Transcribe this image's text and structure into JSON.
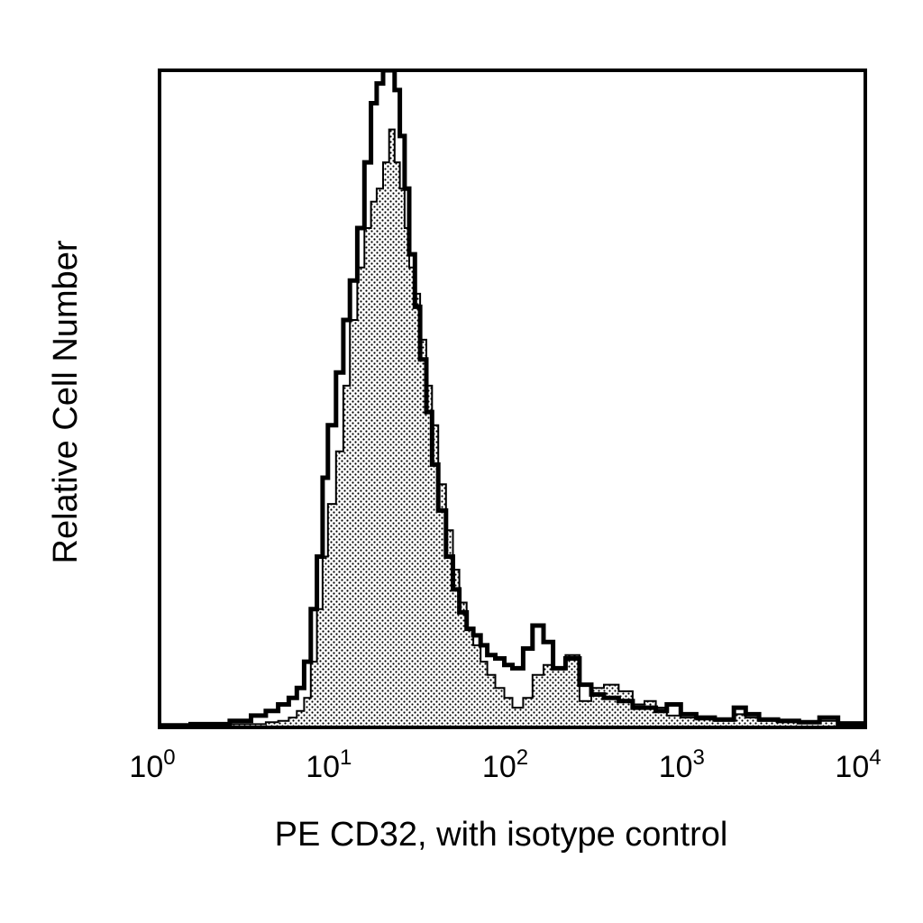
{
  "chart_data": {
    "type": "area",
    "title": "",
    "xlabel": "PE CD32, with isotype control",
    "ylabel": "Relative Cell Number",
    "x_scale": "log",
    "xlim": [
      1,
      10000
    ],
    "ylim": [
      0,
      100
    ],
    "grid": false,
    "legend": "none",
    "x_ticks": [
      {
        "base": "10",
        "exp": "0",
        "value": 1
      },
      {
        "base": "10",
        "exp": "1",
        "value": 10
      },
      {
        "base": "10",
        "exp": "2",
        "value": 100
      },
      {
        "base": "10",
        "exp": "3",
        "value": 1000
      },
      {
        "base": "10",
        "exp": "4",
        "value": 10000
      }
    ],
    "series": [
      {
        "fill": "dotted",
        "color": "#000000",
        "x": [
          1.0,
          1.5,
          2.5,
          3.3,
          4.0,
          4.7,
          5.4,
          6.0,
          6.6,
          7.2,
          7.8,
          8.4,
          9.0,
          10.0,
          11.0,
          12.0,
          13.2,
          14.5,
          15.8,
          17.0,
          18.5,
          20.0,
          21.5,
          23.0,
          24.5,
          26.0,
          28.0,
          30.0,
          32.5,
          35.0,
          38.0,
          42.0,
          46.0,
          50.0,
          55.0,
          60.0,
          66.0,
          72.0,
          80.0,
          90.0,
          100.0,
          115.0,
          130.0,
          150.0,
          170.0,
          200.0,
          240.0,
          280.0,
          330.0,
          400.0,
          480.0,
          560.0,
          650.0,
          750.0,
          900.0,
          1100.0,
          1400.0,
          1800.0,
          2100.0,
          2500.0,
          3200.0,
          4200.0,
          5500.0,
          7000.0,
          10000.0
        ],
        "y": [
          0.3,
          0.3,
          0.5,
          0.5,
          0.8,
          1.0,
          1.5,
          2.5,
          4.5,
          10.0,
          18.0,
          26.0,
          34.0,
          42.0,
          52.0,
          62.0,
          70.0,
          76.0,
          80.0,
          82.0,
          86.0,
          91.0,
          86.0,
          82.0,
          76.0,
          70.0,
          66.0,
          59.0,
          52.0,
          46.0,
          37.0,
          30.0,
          24.0,
          19.0,
          15.0,
          12.5,
          10.0,
          8.0,
          6.0,
          4.5,
          3.0,
          4.5,
          8.0,
          9.5,
          9.0,
          11.0,
          4.0,
          6.0,
          6.5,
          5.5,
          3.5,
          4.0,
          3.0,
          1.8,
          1.5,
          1.2,
          1.0,
          2.0,
          1.5,
          1.0,
          0.8,
          0.8,
          1.0,
          0.5,
          0.3
        ]
      },
      {
        "fill": "none",
        "color": "#000000",
        "x": [
          1.0,
          1.5,
          2.5,
          3.3,
          4.0,
          4.7,
          5.4,
          6.0,
          6.6,
          7.2,
          7.8,
          8.4,
          9.0,
          10.0,
          11.0,
          12.0,
          13.2,
          14.5,
          15.8,
          17.0,
          18.5,
          20.0,
          21.5,
          23.0,
          24.5,
          26.0,
          28.0,
          30.0,
          32.5,
          35.0,
          38.0,
          42.0,
          46.0,
          50.0,
          55.0,
          60.0,
          66.0,
          72.0,
          80.0,
          90.0,
          100.0,
          115.0,
          130.0,
          150.0,
          170.0,
          200.0,
          240.0,
          280.0,
          330.0,
          400.0,
          480.0,
          560.0,
          650.0,
          750.0,
          900.0,
          1100.0,
          1400.0,
          1800.0,
          2100.0,
          2500.0,
          3200.0,
          4200.0,
          5500.0,
          7000.0,
          10000.0
        ],
        "y": [
          0.3,
          0.5,
          1.0,
          1.8,
          2.5,
          3.5,
          4.5,
          6.0,
          10.0,
          18.0,
          26.0,
          38.0,
          46.0,
          54.0,
          62.0,
          68.0,
          76.0,
          86.0,
          95.0,
          98.0,
          100.0,
          100.0,
          97.0,
          90.0,
          82.0,
          72.0,
          64.0,
          56.0,
          48.0,
          40.0,
          33.0,
          26.0,
          21.0,
          17.5,
          15.0,
          14.0,
          12.5,
          11.0,
          10.5,
          9.5,
          9.0,
          12.0,
          15.5,
          13.0,
          9.0,
          10.5,
          6.5,
          5.0,
          4.5,
          4.0,
          3.0,
          3.0,
          2.5,
          3.5,
          2.0,
          1.5,
          1.2,
          3.0,
          2.0,
          1.2,
          1.0,
          0.8,
          1.5,
          0.6,
          0.3
        ]
      }
    ]
  }
}
